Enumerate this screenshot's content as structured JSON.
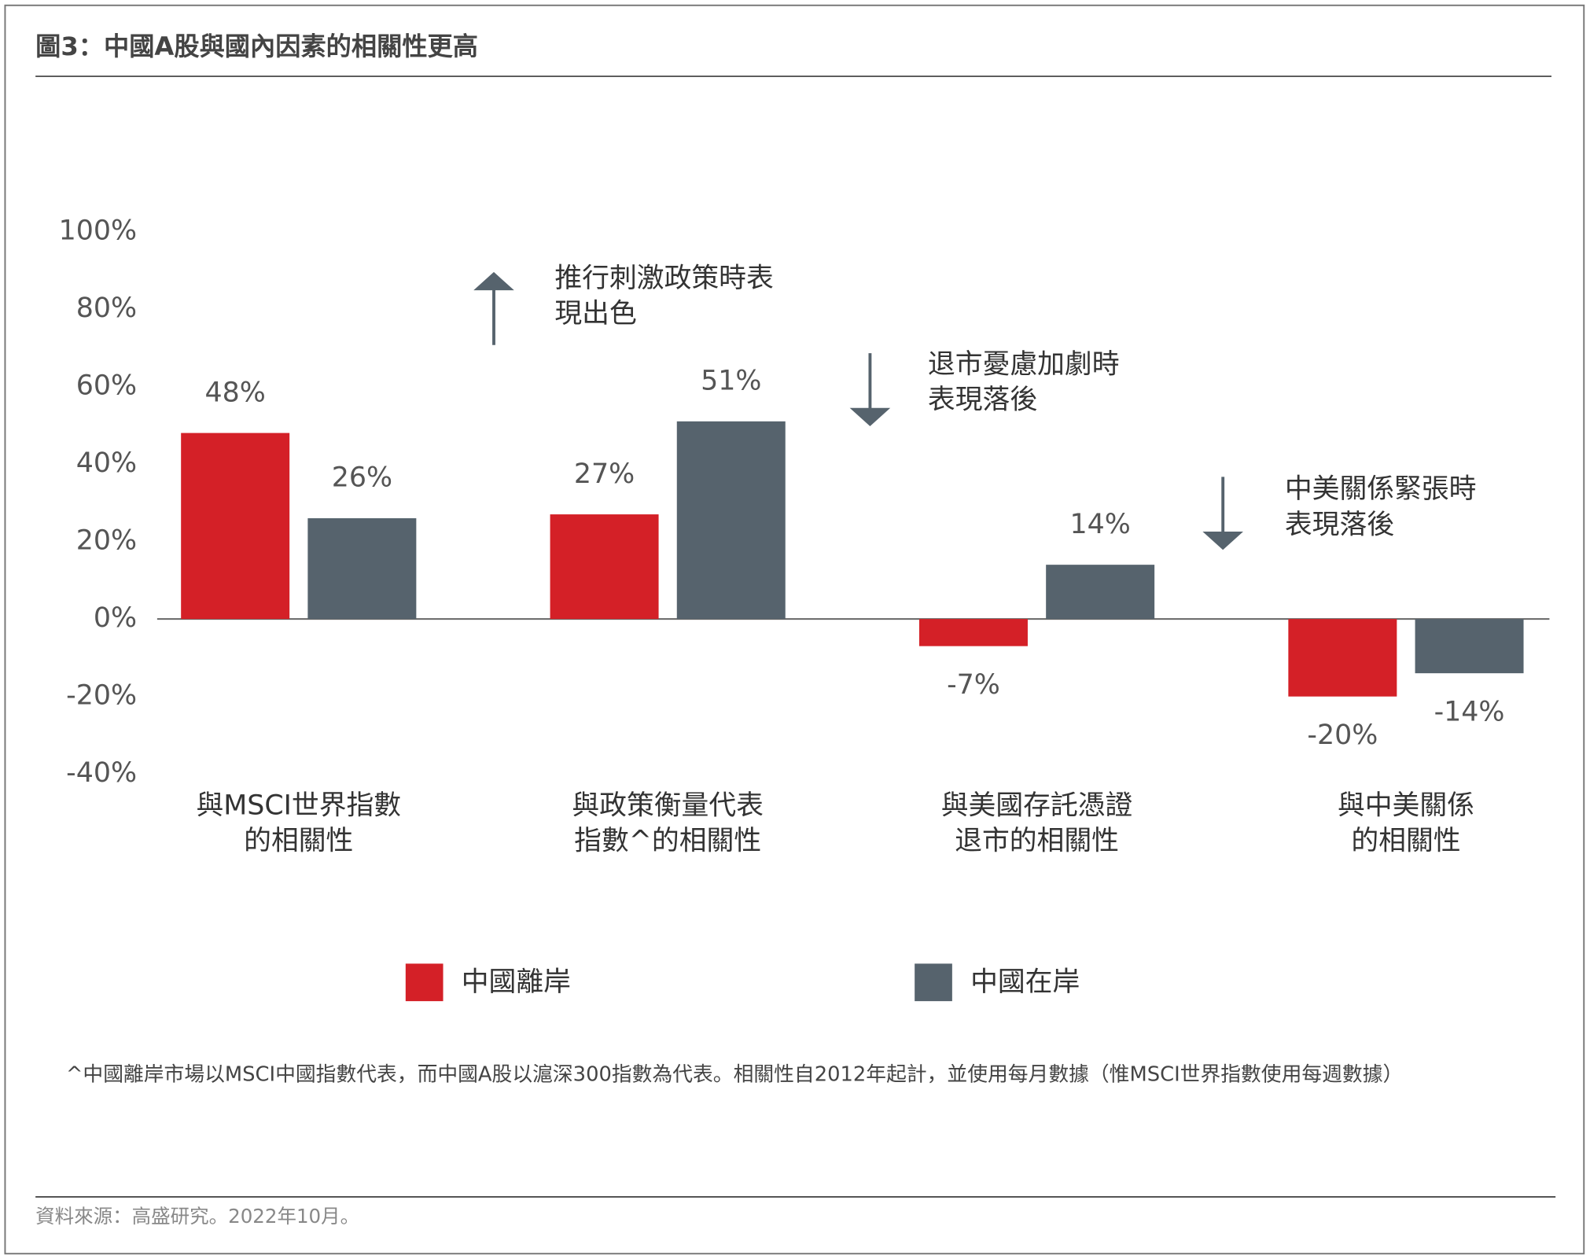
{
  "title": "圖3：中國A股與國內因素的相關性更高",
  "chart_data": {
    "type": "bar",
    "categories": [
      [
        "與MSCI世界指數",
        "的相關性"
      ],
      [
        "與政策衡量代表",
        "指數^的相關性"
      ],
      [
        "與美國存託憑證",
        "退市的相關性"
      ],
      [
        "與中美關係",
        "的相關性"
      ]
    ],
    "series": [
      {
        "name": "中國離岸",
        "color": "#d42027",
        "values": [
          48,
          27,
          -7,
          -20
        ],
        "value_labels": [
          "48%",
          "27%",
          "-7%",
          "-20%"
        ]
      },
      {
        "name": "中國在岸",
        "color": "#56636d",
        "values": [
          26,
          51,
          14,
          -14
        ],
        "value_labels": [
          "26%",
          "51%",
          "14%",
          "-14%"
        ]
      }
    ],
    "ylim": [
      -40,
      100
    ],
    "yticks": [
      {
        "value": -40,
        "label": "-40%"
      },
      {
        "value": -20,
        "label": "-20%"
      },
      {
        "value": 0,
        "label": "0%"
      },
      {
        "value": 20,
        "label": "20%"
      },
      {
        "value": 40,
        "label": "40%"
      },
      {
        "value": 60,
        "label": "60%"
      },
      {
        "value": 80,
        "label": "80%"
      },
      {
        "value": 100,
        "label": "100%"
      }
    ],
    "annotations": [
      {
        "lines": [
          "推行刺激政策時表",
          "現出色"
        ],
        "arrow": "up"
      },
      {
        "lines": [
          "退市憂慮加劇時",
          "表現落後"
        ],
        "arrow": "down"
      },
      {
        "lines": [
          "中美關係緊張時",
          "表現落後"
        ],
        "arrow": "down"
      }
    ]
  },
  "footnote": "^中國離岸市場以MSCI中國指數代表，而中國A股以滬深300指數為代表。相關性自2012年起計，並使用每月數據（惟MSCI世界指數使用每週數據）",
  "source": "資料來源：高盛研究。2022年10月。"
}
